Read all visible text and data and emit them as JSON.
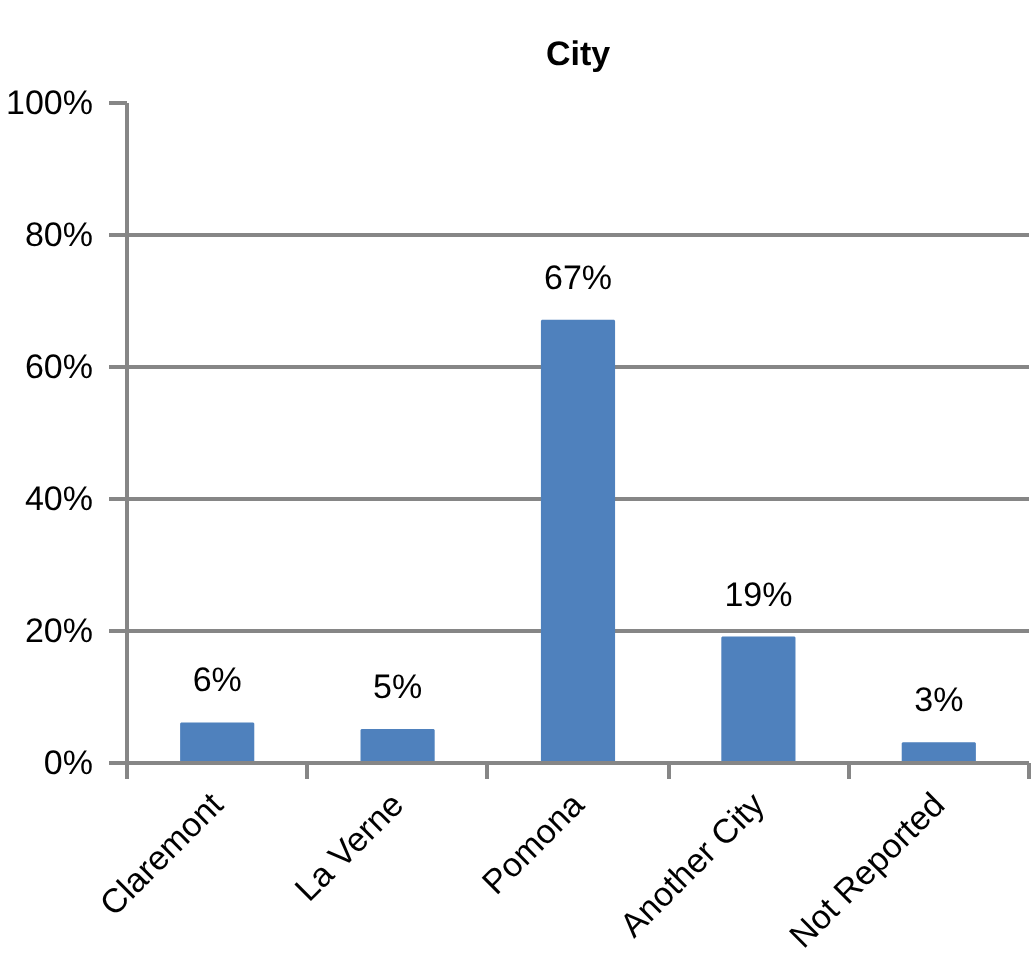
{
  "chart_data": {
    "type": "bar",
    "title": "City",
    "categories": [
      "Claremont",
      "La Verne",
      "Pomona",
      "Another City",
      "Not Reported"
    ],
    "values": [
      6,
      5,
      67,
      19,
      3
    ],
    "value_labels": [
      "6%",
      "5%",
      "67%",
      "19%",
      "3%"
    ],
    "color": "#4f81bd",
    "ylim": [
      0,
      100
    ],
    "yticks": [
      {
        "value": 0,
        "label": "0%"
      },
      {
        "value": 20,
        "label": "20%"
      },
      {
        "value": 40,
        "label": "40%"
      },
      {
        "value": 60,
        "label": "60%"
      },
      {
        "value": 80,
        "label": "80%"
      },
      {
        "value": 100,
        "label": "100%"
      }
    ],
    "grid": "y"
  }
}
